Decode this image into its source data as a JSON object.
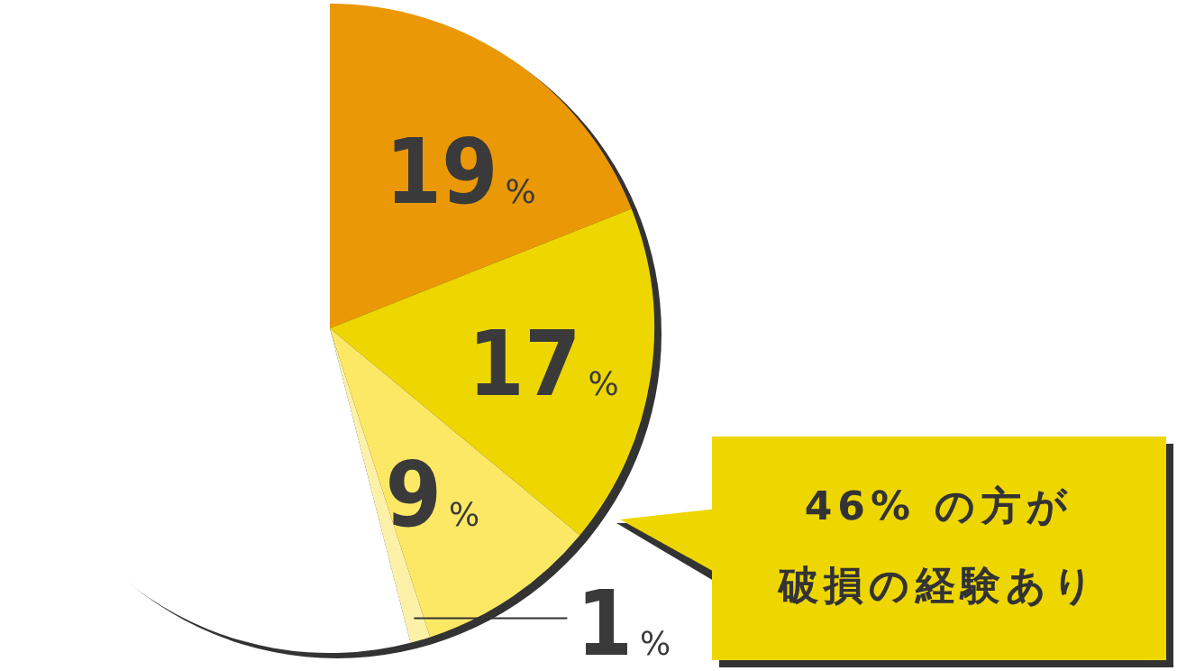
{
  "chart_data": {
    "type": "pie",
    "categories": [
      null,
      null,
      null,
      null,
      null
    ],
    "values": [
      19,
      17,
      9,
      1,
      54
    ],
    "colors": [
      "#eb9807",
      "#eed700",
      "#fde865",
      "#fdf1a8",
      "#ffffff"
    ],
    "value_labels": [
      "19%",
      "17%",
      "9%",
      "1%",
      null
    ],
    "annotations": [
      "46% の方が",
      "破損の経験あり"
    ],
    "legend": false
  }
}
